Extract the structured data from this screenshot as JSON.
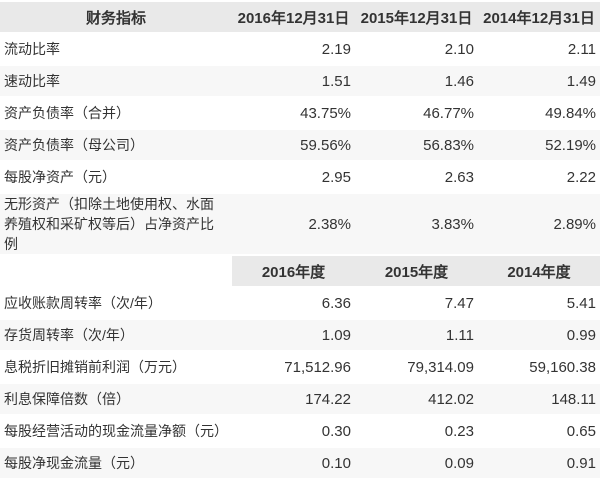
{
  "colors": {
    "header_bg": "#e9e9e9",
    "row_white_bg": "#ffffff",
    "row_alt_bg": "#f7f7f7",
    "text": "#333333"
  },
  "balance_sheet_section": {
    "header": {
      "indicator_label": "财务指标",
      "col_2016": "2016年12月31日",
      "col_2015": "2015年12月31日",
      "col_2014": "2014年12月31日"
    },
    "rows": [
      {
        "label": "流动比率",
        "values": [
          "2.19",
          "2.10",
          "2.11"
        ]
      },
      {
        "label": "速动比率",
        "values": [
          "1.51",
          "1.46",
          "1.49"
        ]
      },
      {
        "label": "资产负债率（合并）",
        "values": [
          "43.75%",
          "46.77%",
          "49.84%"
        ]
      },
      {
        "label": "资产负债率（母公司）",
        "values": [
          "59.56%",
          "56.83%",
          "52.19%"
        ]
      },
      {
        "label": "每股净资产（元）",
        "values": [
          "2.95",
          "2.63",
          "2.22"
        ]
      },
      {
        "label": "无形资产（扣除土地使用权、水面养殖权和采矿权等后）占净资产比例",
        "values": [
          "2.38%",
          "3.83%",
          "2.89%"
        ]
      }
    ]
  },
  "period_section": {
    "header": {
      "indicator_label": "",
      "col_2016": "2016年度",
      "col_2015": "2015年度",
      "col_2014": "2014年度"
    },
    "rows": [
      {
        "label": "应收账款周转率（次/年）",
        "values": [
          "6.36",
          "7.47",
          "5.41"
        ]
      },
      {
        "label": "存货周转率（次/年）",
        "values": [
          "1.09",
          "1.11",
          "0.99"
        ]
      },
      {
        "label": "息税折旧摊销前利润（万元）",
        "values": [
          "71,512.96",
          "79,314.09",
          "59,160.38"
        ]
      },
      {
        "label": "利息保障倍数（倍）",
        "values": [
          "174.22",
          "412.02",
          "148.11"
        ]
      },
      {
        "label": "每股经营活动的现金流量净额（元）",
        "values": [
          "0.30",
          "0.23",
          "0.65"
        ]
      },
      {
        "label": "每股净现金流量（元）",
        "values": [
          "0.10",
          "0.09",
          "0.91"
        ]
      }
    ]
  }
}
